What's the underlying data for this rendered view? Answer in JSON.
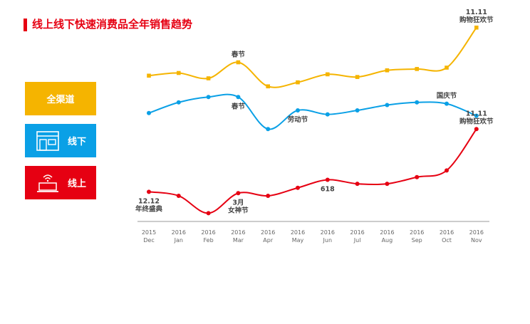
{
  "title": "线上线下快速消费品全年销售趋势",
  "legend": {
    "all": "全渠道",
    "offline": "线下",
    "online": "线上",
    "offline_icon": "storefront-icon",
    "online_icon": "laptop-wifi-icon"
  },
  "chart_data": {
    "type": "line",
    "categories": [
      {
        "year": "2015",
        "month": "Dec"
      },
      {
        "year": "2016",
        "month": "Jan"
      },
      {
        "year": "2016",
        "month": "Feb"
      },
      {
        "year": "2016",
        "month": "Mar"
      },
      {
        "year": "2016",
        "month": "Apr"
      },
      {
        "year": "2016",
        "month": "May"
      },
      {
        "year": "2016",
        "month": "Jun"
      },
      {
        "year": "2016",
        "month": "Jul"
      },
      {
        "year": "2016",
        "month": "Aug"
      },
      {
        "year": "2016",
        "month": "Sep"
      },
      {
        "year": "2016",
        "month": "Oct"
      },
      {
        "year": "2016",
        "month": "Nov"
      }
    ],
    "series": [
      {
        "name": "全渠道",
        "color": "#f5b400",
        "values": [
          74,
          76,
          72,
          84,
          66,
          69,
          75,
          73,
          78,
          79,
          80,
          110
        ]
      },
      {
        "name": "线下",
        "color": "#0aa0e6",
        "values": [
          46,
          54,
          58,
          58,
          34,
          48,
          45,
          48,
          52,
          54,
          53,
          44
        ]
      },
      {
        "name": "线上",
        "color": "#e60012",
        "values": [
          -13,
          -16,
          -29,
          -14,
          -16,
          -10,
          -4,
          -7,
          -7,
          -2,
          3,
          34
        ]
      }
    ],
    "annotations": [
      {
        "series": 0,
        "index": 3,
        "lines": [
          "春节"
        ],
        "position": "above"
      },
      {
        "series": 0,
        "index": 11,
        "lines": [
          "11.11",
          "购物狂欢节"
        ],
        "position": "above"
      },
      {
        "series": 1,
        "index": 3,
        "lines": [
          "春节"
        ],
        "position": "below"
      },
      {
        "series": 1,
        "index": 5,
        "lines": [
          "劳动节"
        ],
        "position": "below"
      },
      {
        "series": 1,
        "index": 10,
        "lines": [
          "国庆节"
        ],
        "position": "above"
      },
      {
        "series": 2,
        "index": 0,
        "lines": [
          "12.12",
          "年终盛典"
        ],
        "position": "below"
      },
      {
        "series": 2,
        "index": 3,
        "lines": [
          "3月",
          "女神节"
        ],
        "position": "below"
      },
      {
        "series": 2,
        "index": 6,
        "lines": [
          "618"
        ],
        "position": "below"
      },
      {
        "series": 2,
        "index": 11,
        "lines": [
          "11.11",
          "购物狂欢节"
        ],
        "position": "above"
      }
    ],
    "ylim": [
      -40,
      120
    ],
    "grid": false
  }
}
